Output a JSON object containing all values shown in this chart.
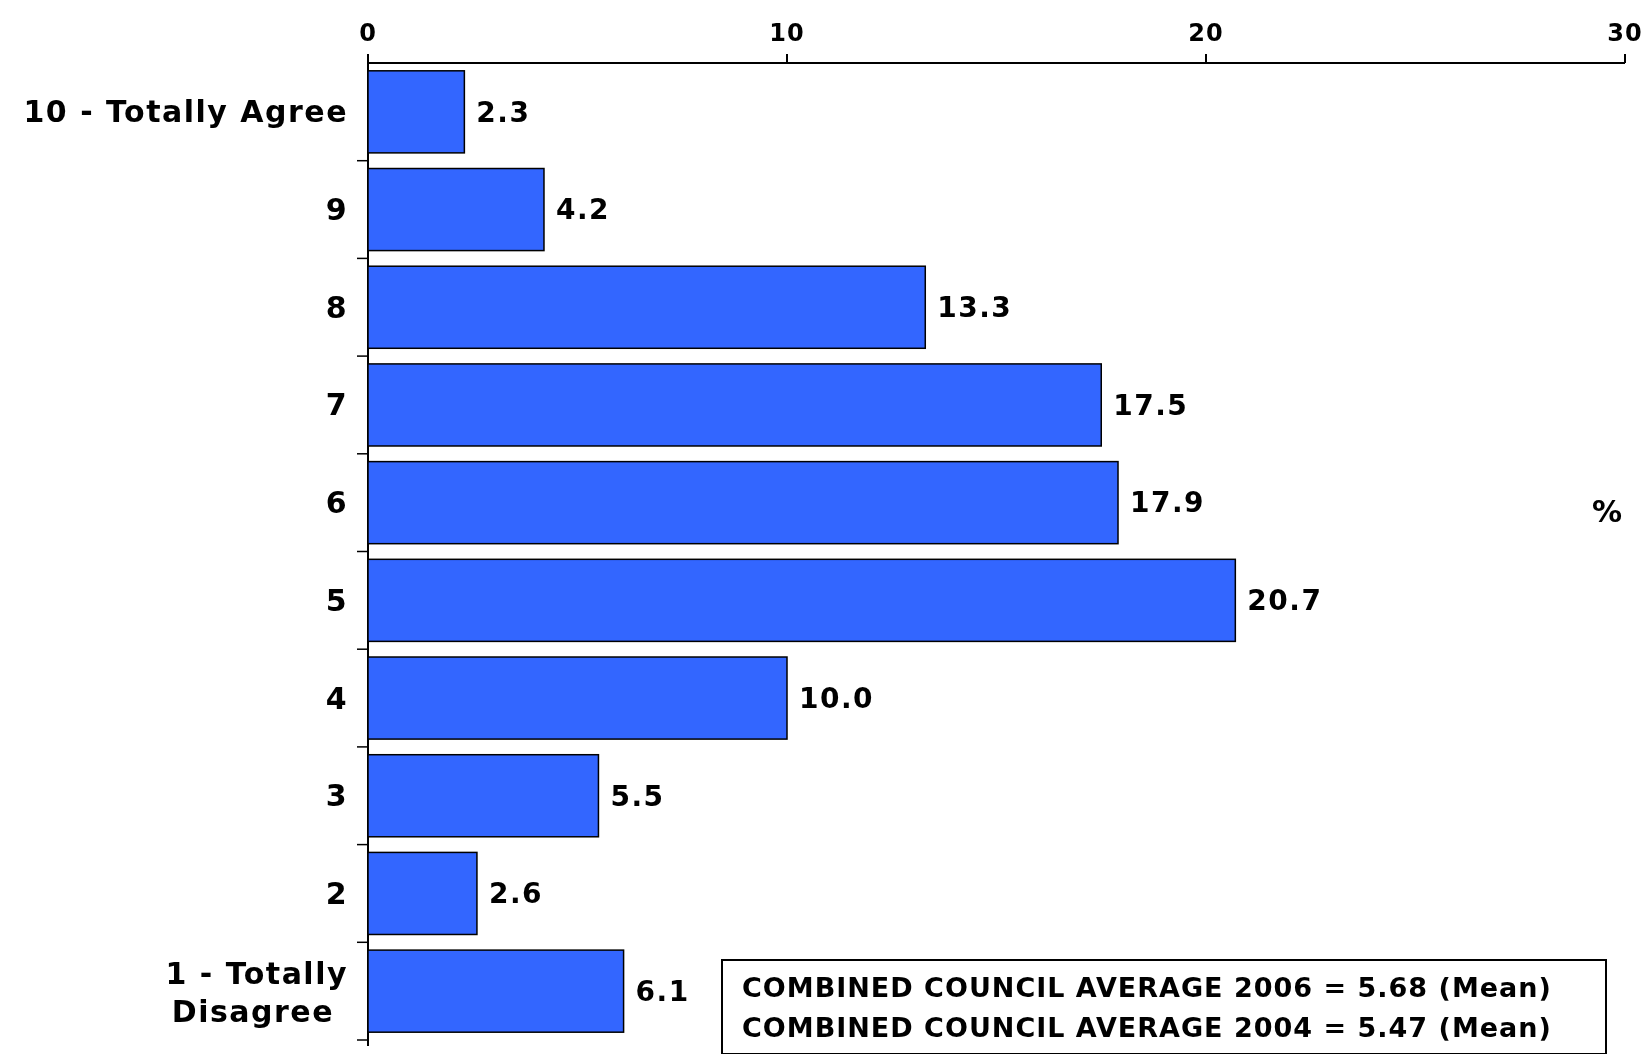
{
  "chart_data": {
    "type": "bar",
    "orientation": "horizontal",
    "categories": [
      "10 - Totally Agree",
      "9",
      "8",
      "7",
      "6",
      "5",
      "4",
      "3",
      "2",
      "1 - Totally Disagree"
    ],
    "values": [
      2.3,
      4.2,
      13.3,
      17.5,
      17.9,
      20.7,
      10.0,
      5.5,
      2.6,
      6.1
    ],
    "value_labels": [
      "2.3",
      "4.2",
      "13.3",
      "17.5",
      "17.9",
      "20.7",
      "10.0",
      "5.5",
      "2.6",
      "6.1"
    ],
    "color": "#3366ff",
    "xlim": [
      0,
      30
    ],
    "xticks": [
      0,
      10,
      20,
      30
    ],
    "xlabel": "%",
    "grid": false,
    "annotations": [
      "COMBINED COUNCIL AVERAGE 2006 = 5.68 (Mean)",
      "COMBINED COUNCIL AVERAGE 2004 = 5.47 (Mean)"
    ]
  }
}
